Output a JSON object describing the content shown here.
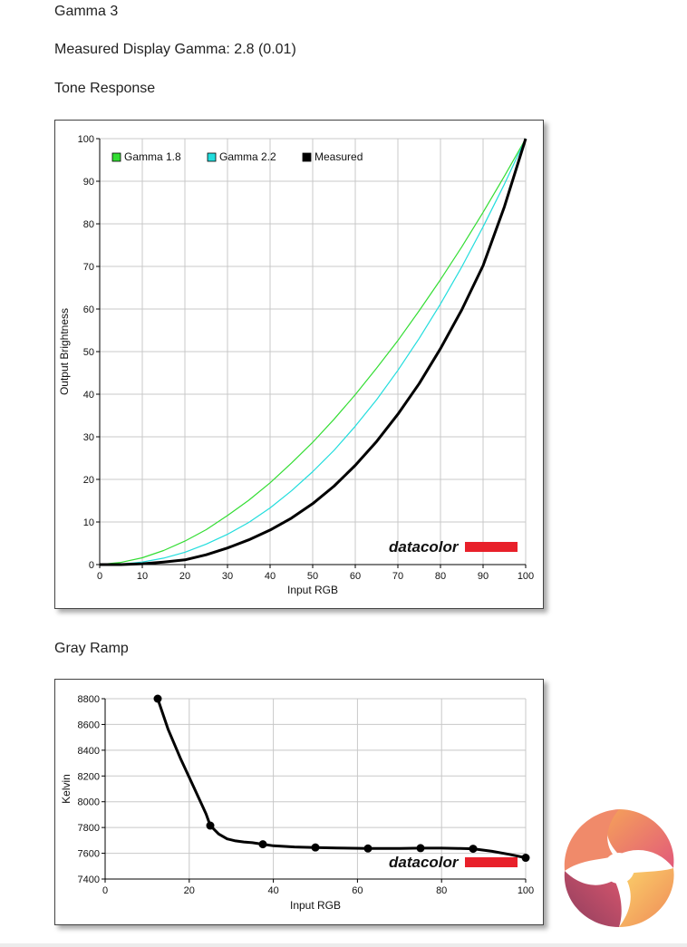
{
  "headings": {
    "mode": "Gamma 3",
    "measured": "Measured Display Gamma: 2.8 (0.01)",
    "tone_response": "Tone Response",
    "gray_ramp": "Gray Ramp"
  },
  "brand": {
    "watermark": "datacolor",
    "accent": "#e8202a"
  },
  "chart_data": [
    {
      "type": "line",
      "xlabel": "Input RGB",
      "ylabel": "Output Brightness",
      "xlim": [
        0,
        100
      ],
      "ylim": [
        0,
        100
      ],
      "xticks": [
        0,
        10,
        20,
        30,
        40,
        50,
        60,
        70,
        80,
        90,
        100
      ],
      "yticks": [
        0,
        10,
        20,
        30,
        40,
        50,
        60,
        70,
        80,
        90,
        100
      ],
      "grid": true,
      "legend_position": "top-left",
      "x": [
        0,
        5,
        10,
        15,
        20,
        25,
        30,
        35,
        40,
        45,
        50,
        55,
        60,
        65,
        70,
        75,
        80,
        85,
        90,
        95,
        100
      ],
      "series": [
        {
          "name": "Gamma 1.8",
          "color": "#33dd33",
          "values": [
            0,
            0.5,
            1.6,
            3.3,
            5.5,
            8.2,
            11.5,
            15.1,
            19.2,
            23.8,
            28.7,
            34.1,
            39.9,
            46.1,
            52.6,
            59.6,
            66.9,
            74.6,
            82.7,
            91.2,
            100
          ]
        },
        {
          "name": "Gamma 2.2",
          "color": "#22dddd",
          "values": [
            0,
            0.1,
            0.6,
            1.5,
            2.9,
            4.8,
            7.1,
            9.9,
            13.3,
            17.3,
            21.8,
            26.8,
            32.5,
            38.7,
            45.6,
            53.1,
            61.2,
            69.9,
            79.3,
            89.3,
            100
          ]
        },
        {
          "name": "Measured",
          "color": "#000000",
          "values": [
            0,
            0.0,
            0.2,
            0.6,
            1.1,
            2.3,
            3.9,
            5.8,
            8.1,
            10.9,
            14.3,
            18.4,
            23.3,
            28.9,
            35.3,
            42.5,
            50.7,
            59.8,
            70.2,
            84.0,
            100
          ]
        }
      ]
    },
    {
      "type": "line",
      "xlabel": "Input RGB",
      "ylabel": "Kelvin",
      "xlim": [
        0,
        100
      ],
      "ylim": [
        7400,
        8800
      ],
      "xticks": [
        0,
        20,
        40,
        60,
        80,
        100
      ],
      "yticks": [
        7400,
        7600,
        7800,
        8000,
        8200,
        8400,
        8600,
        8800
      ],
      "grid": true,
      "markers": {
        "x": [
          12.5,
          25,
          37.5,
          50,
          62.5,
          75,
          87.5,
          100
        ],
        "y": [
          8800,
          7815,
          7670,
          7645,
          7637,
          7640,
          7635,
          7565
        ]
      },
      "curve": {
        "x": [
          12.5,
          15,
          18,
          21,
          24,
          25,
          27,
          29,
          31,
          33,
          35,
          37.5,
          40,
          45,
          50,
          55,
          62.5,
          70,
          75,
          80,
          84,
          87.5,
          92,
          96,
          100
        ],
        "y": [
          8800,
          8560,
          8330,
          8120,
          7905,
          7815,
          7750,
          7712,
          7696,
          7688,
          7682,
          7670,
          7658,
          7649,
          7645,
          7641,
          7637,
          7637,
          7640,
          7640,
          7638,
          7635,
          7615,
          7592,
          7565
        ]
      }
    }
  ]
}
